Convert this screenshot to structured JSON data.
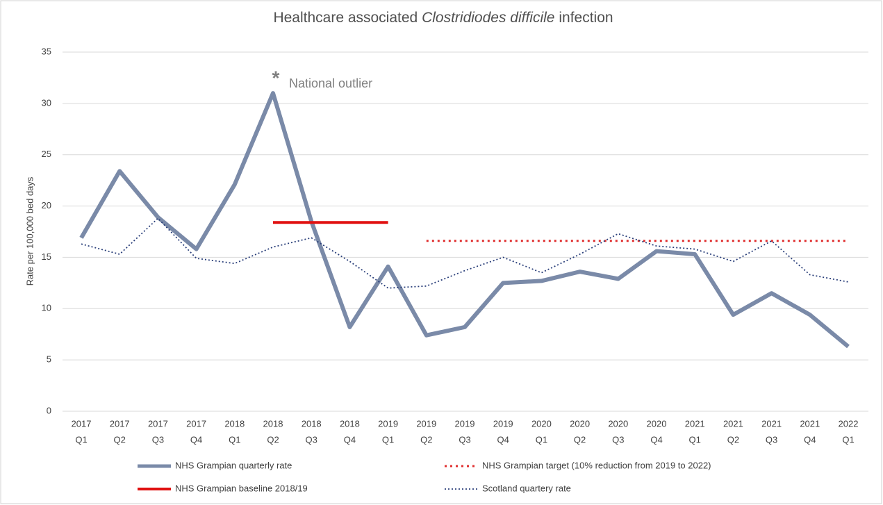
{
  "chart_data": {
    "type": "line",
    "title": [
      "Healthcare associated",
      "Clostridiodes difficile",
      "infection"
    ],
    "ylabel": "Rate per 100,000 bed days",
    "categories": [
      [
        "2017",
        "Q1"
      ],
      [
        "2017",
        "Q2"
      ],
      [
        "2017",
        "Q3"
      ],
      [
        "2017",
        "Q4"
      ],
      [
        "2018",
        "Q1"
      ],
      [
        "2018",
        "Q2"
      ],
      [
        "2018",
        "Q3"
      ],
      [
        "2018",
        "Q4"
      ],
      [
        "2019",
        "Q1"
      ],
      [
        "2019",
        "Q2"
      ],
      [
        "2019",
        "Q3"
      ],
      [
        "2019",
        "Q4"
      ],
      [
        "2020",
        "Q1"
      ],
      [
        "2020",
        "Q2"
      ],
      [
        "2020",
        "Q3"
      ],
      [
        "2020",
        "Q4"
      ],
      [
        "2021",
        "Q1"
      ],
      [
        "2021",
        "Q2"
      ],
      [
        "2021",
        "Q3"
      ],
      [
        "2021",
        "Q4"
      ],
      [
        "2022",
        "Q1"
      ]
    ],
    "ylim": [
      0,
      35
    ],
    "yticks": [
      0,
      5,
      10,
      15,
      20,
      25,
      30,
      35
    ],
    "grid": true,
    "series": [
      {
        "name": "NHS Grampian quarterly rate",
        "color": "#7a8aa8",
        "width": 6,
        "dash": "none",
        "values": [
          16.9,
          23.4,
          18.9,
          15.8,
          22.1,
          31.0,
          18.5,
          8.2,
          14.1,
          7.4,
          8.2,
          12.5,
          12.7,
          13.6,
          12.9,
          15.6,
          15.3,
          9.4,
          11.5,
          9.4,
          6.3
        ]
      },
      {
        "name": "NHS Grampian target (10% reduction from 2019 to 2022)",
        "color": "#e03030",
        "width": 3,
        "dash": "3 5",
        "values": [
          null,
          null,
          null,
          null,
          null,
          null,
          null,
          null,
          null,
          16.6,
          16.6,
          16.6,
          16.6,
          16.6,
          16.6,
          16.6,
          16.6,
          16.6,
          16.6,
          16.6,
          16.6
        ]
      },
      {
        "name": "NHS Grampian baseline 2018/19",
        "color": "#e01010",
        "width": 4,
        "dash": "none",
        "values": [
          null,
          null,
          null,
          null,
          null,
          18.4,
          18.4,
          18.4,
          18.4,
          null,
          null,
          null,
          null,
          null,
          null,
          null,
          null,
          null,
          null,
          null,
          null
        ]
      },
      {
        "name": "Scotland quartery rate",
        "color": "#2a3f7a",
        "width": 1.8,
        "dash": "2 3",
        "values": [
          16.3,
          15.3,
          18.8,
          14.9,
          14.4,
          16.0,
          16.9,
          14.6,
          12.0,
          12.2,
          13.7,
          15.0,
          13.5,
          15.3,
          17.3,
          16.1,
          15.8,
          14.6,
          16.6,
          13.3,
          12.6
        ]
      }
    ],
    "annotation": {
      "marker": "*",
      "text": "National outlier",
      "category": 5,
      "value": 31.0
    }
  }
}
